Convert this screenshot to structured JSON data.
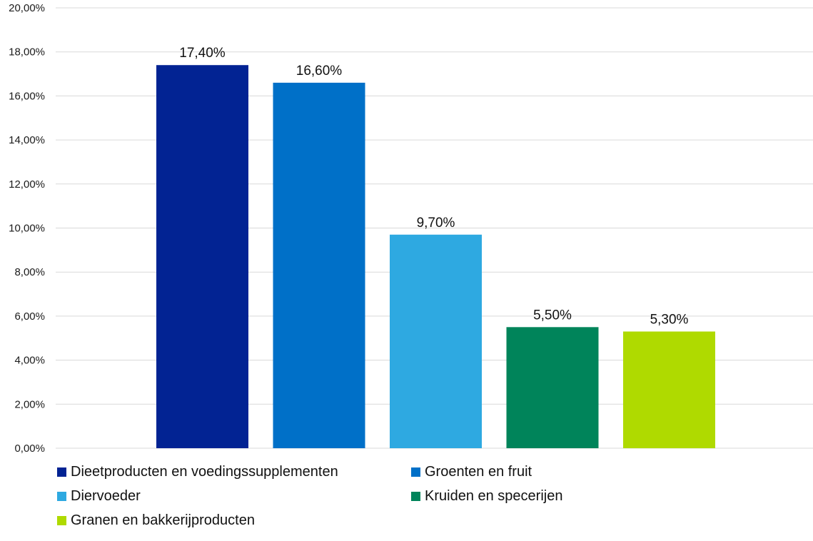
{
  "chart_data": {
    "type": "bar",
    "categories": [
      "Dieetproducten en voedingssupplementen",
      "Groenten en fruit",
      "Diervoeder",
      "Kruiden en specerijen",
      "Granen en bakkerijproducten"
    ],
    "values": [
      17.4,
      16.6,
      9.7,
      5.5,
      5.3
    ],
    "data_labels": [
      "17,40%",
      "16,60%",
      "9,70%",
      "5,50%",
      "5,30%"
    ],
    "colors": [
      "#022393",
      "#0070C8",
      "#2EA9E1",
      "#00845A",
      "#AFDA00"
    ],
    "ylim": [
      0,
      20
    ],
    "yticks": [
      "0,00%",
      "2,00%",
      "4,00%",
      "6,00%",
      "8,00%",
      "10,00%",
      "12,00%",
      "14,00%",
      "16,00%",
      "18,00%",
      "20,00%"
    ],
    "grid": true,
    "legend_position": "bottom",
    "title": "",
    "xlabel": "",
    "ylabel": ""
  }
}
